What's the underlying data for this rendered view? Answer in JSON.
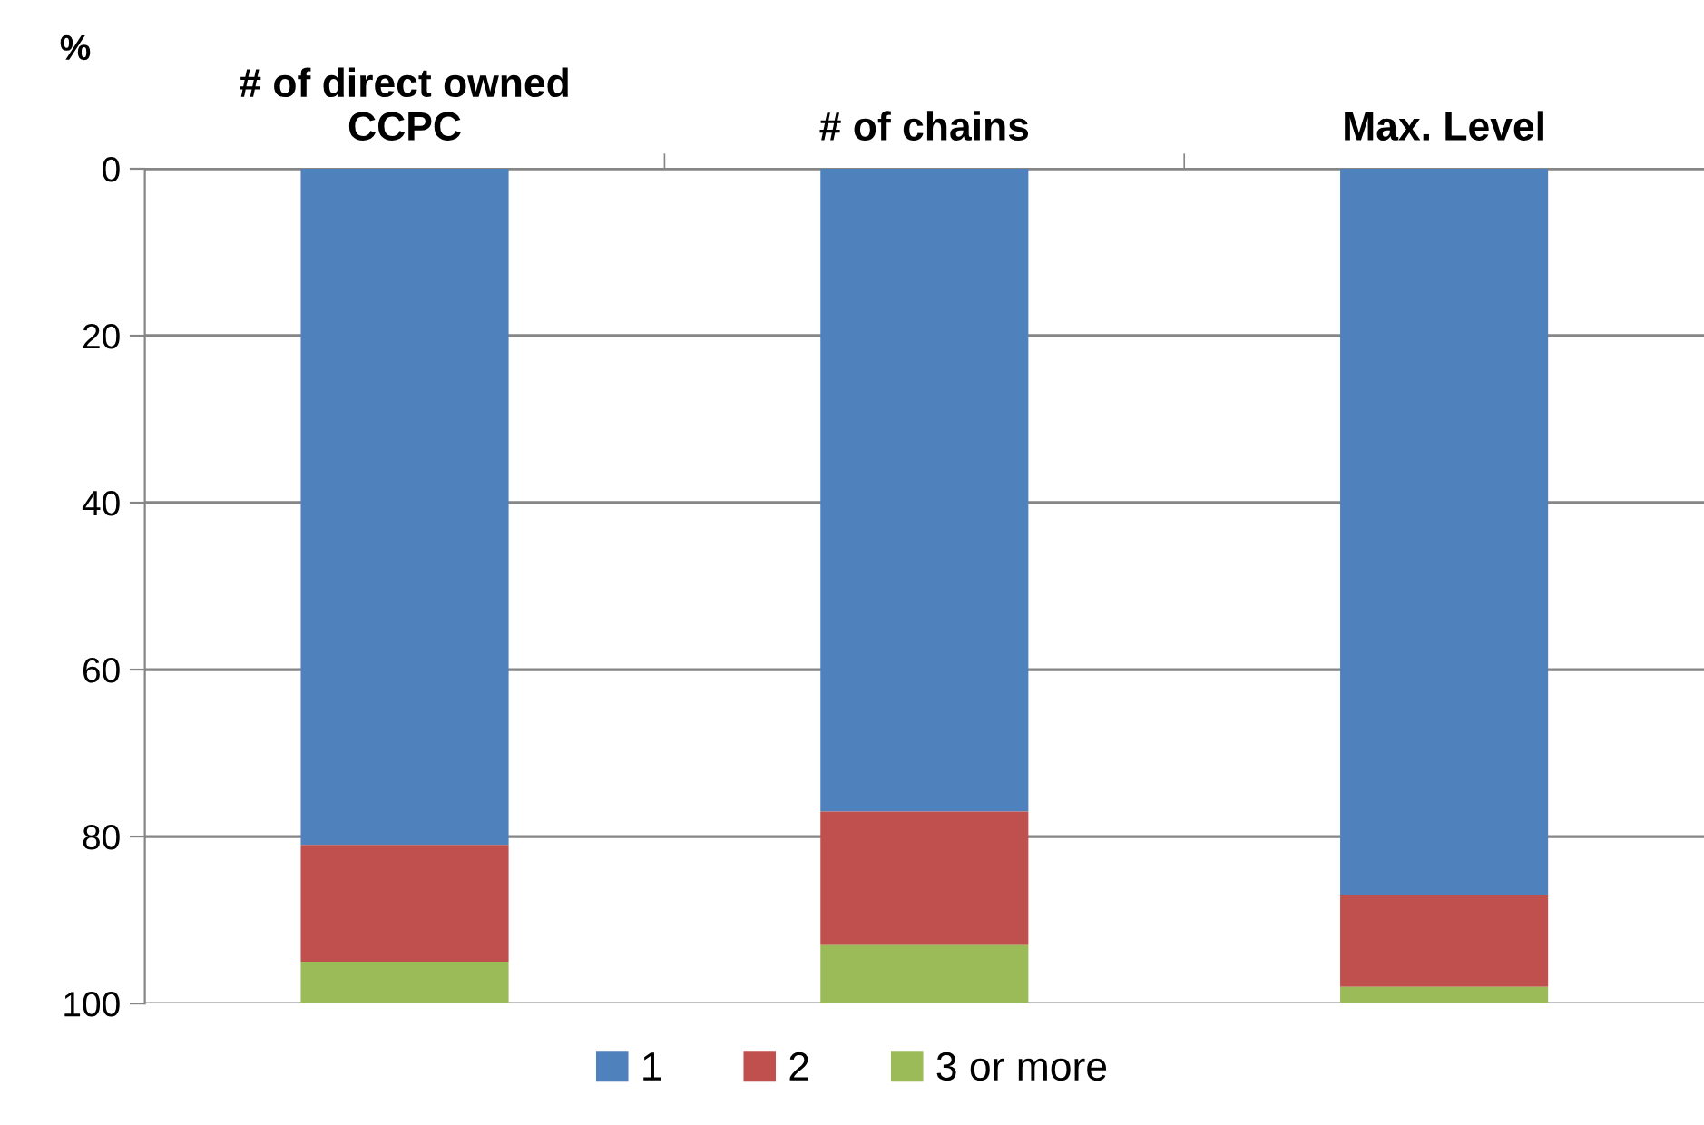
{
  "chart_data": {
    "type": "bar",
    "stacked": true,
    "ylabel": "%",
    "categories": [
      "# of direct owned\nCCPC",
      "# of chains",
      "Max. Level"
    ],
    "series": [
      {
        "name": "1",
        "color": "#4f81bd",
        "values": [
          81,
          77,
          87
        ]
      },
      {
        "name": "2",
        "color": "#c0504d",
        "values": [
          14,
          16,
          11
        ]
      },
      {
        "name": "3 or more",
        "color": "#9bbb59",
        "values": [
          5,
          7,
          2
        ]
      }
    ],
    "ylim": [
      100,
      0
    ],
    "yticks": [
      0,
      20,
      40,
      60,
      80,
      100
    ],
    "grid": "y",
    "legend": "bottom"
  }
}
